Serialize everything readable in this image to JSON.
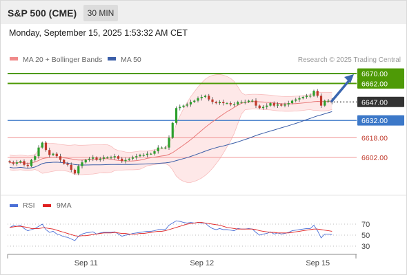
{
  "header": {
    "symbol": "S&P 500 (CME)",
    "interval": "30 MIN"
  },
  "datetime": "Monday, September 15, 2025 1:53:32 AM CET",
  "legend": {
    "ma20": "MA 20 + Bollinger Bands",
    "ma50": "MA 50",
    "credit": "Research © 2025 Trading Central"
  },
  "rsi_legend": {
    "rsi": "RSI",
    "ma": "9MA"
  },
  "colors": {
    "resistance": "#4e9a06",
    "support": "#3c78c8",
    "pivot_red": "#e25050",
    "current": "#333333",
    "ma20": "#e87878",
    "ma50": "#3b5ea8",
    "bands": "#fde0e0",
    "bull": "#2ca02c",
    "bear": "#c0392b",
    "rsi": "#4a6fd6",
    "rsi_ma": "#e02020"
  },
  "chart_data": [
    {
      "type": "candlestick",
      "title": "S&P 500 (CME)",
      "xlabel": "",
      "ylabel": "",
      "ylim": [
        6585,
        6675
      ],
      "x_ticks": [
        "Sep 11",
        "Sep 12",
        "Sep 15"
      ],
      "levels": [
        {
          "label": "6670.00",
          "value": 6670.0,
          "kind": "resistance"
        },
        {
          "label": "6662.00",
          "value": 6662.0,
          "kind": "resistance"
        },
        {
          "label": "6647.00",
          "value": 6647.0,
          "kind": "current"
        },
        {
          "label": "6632.00",
          "value": 6632.0,
          "kind": "support"
        },
        {
          "label": "6618.00",
          "value": 6618.0,
          "kind": "pivot"
        },
        {
          "label": "6602.00",
          "value": 6602.0,
          "kind": "pivot"
        }
      ],
      "close": [
        6598,
        6597,
        6598,
        6599,
        6596,
        6595,
        6600,
        6603,
        6610,
        6614,
        6608,
        6604,
        6605,
        6603,
        6600,
        6597,
        6596,
        6592,
        6589,
        6595,
        6598,
        6600,
        6601,
        6602,
        6600,
        6601,
        6602,
        6602,
        6602,
        6603,
        6601,
        6599,
        6600,
        6601,
        6602,
        6603,
        6604,
        6604,
        6605,
        6605,
        6607,
        6610,
        6610,
        6610,
        6618,
        6630,
        6642,
        6643,
        6644,
        6645,
        6647,
        6648,
        6650,
        6651,
        6652,
        6649,
        6647,
        6646,
        6647,
        6646,
        6646,
        6645,
        6645,
        6647,
        6647,
        6647,
        6648,
        6648,
        6644,
        6642,
        6643,
        6644,
        6646,
        6644,
        6645,
        6644,
        6645,
        6646,
        6648,
        6649,
        6650,
        6651,
        6652,
        6652,
        6656,
        6652,
        6644,
        6648,
        6648,
        6647
      ],
      "series": [
        {
          "name": "MA 20 + Bollinger Bands",
          "kind": "ma20"
        },
        {
          "name": "MA 50",
          "kind": "ma50"
        }
      ],
      "projection": {
        "from": 6647,
        "to": 6670
      }
    },
    {
      "type": "line",
      "title": "",
      "ylim": [
        20,
        80
      ],
      "y_ticks": [
        70,
        50,
        30
      ],
      "series": [
        {
          "name": "RSI",
          "values": [
            64,
            67,
            66,
            68,
            62,
            58,
            60,
            62,
            66,
            70,
            60,
            55,
            57,
            52,
            50,
            47,
            46,
            43,
            40,
            48,
            52,
            54,
            55,
            56,
            52,
            54,
            55,
            55,
            55,
            56,
            52,
            48,
            50,
            51,
            53,
            54,
            55,
            56,
            57,
            57,
            58,
            60,
            60,
            60,
            68,
            72,
            76,
            75,
            73,
            72,
            73,
            72,
            73,
            72,
            72,
            66,
            62,
            60,
            62,
            60,
            60,
            59,
            58,
            62,
            61,
            61,
            62,
            61,
            55,
            50,
            52,
            53,
            56,
            52,
            54,
            52,
            53,
            55,
            58,
            59,
            60,
            61,
            62,
            62,
            68,
            58,
            45,
            52,
            52,
            51
          ]
        },
        {
          "name": "9MA",
          "values": [
            64,
            65,
            66,
            66,
            65,
            64,
            62,
            62,
            62,
            63,
            63,
            62,
            61,
            59,
            57,
            55,
            53,
            51,
            49,
            48,
            49,
            49,
            50,
            51,
            52,
            53,
            54,
            54,
            54,
            55,
            54,
            53,
            53,
            52,
            52,
            52,
            53,
            53,
            54,
            55,
            56,
            57,
            57,
            58,
            60,
            62,
            64,
            66,
            68,
            70,
            71,
            72,
            73,
            73,
            72,
            71,
            70,
            69,
            68,
            66,
            64,
            63,
            62,
            61,
            61,
            61,
            61,
            61,
            60,
            58,
            57,
            56,
            55,
            55,
            54,
            54,
            54,
            54,
            55,
            56,
            57,
            58,
            59,
            60,
            61,
            61,
            60,
            59,
            58,
            57
          ]
        }
      ]
    }
  ]
}
